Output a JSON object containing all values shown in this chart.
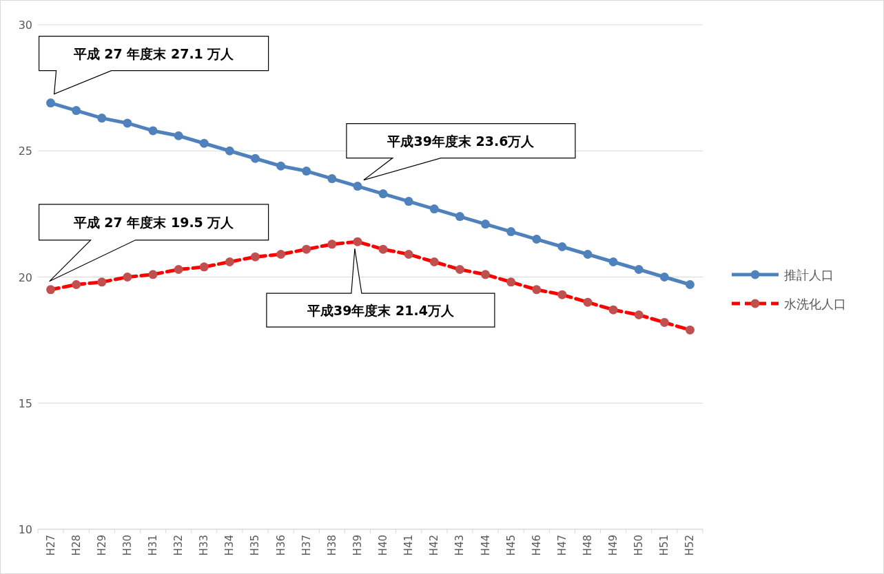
{
  "chart_data": {
    "type": "line",
    "categories": [
      "H27",
      "H28",
      "H29",
      "H30",
      "H31",
      "H32",
      "H33",
      "H34",
      "H35",
      "H36",
      "H37",
      "H38",
      "H39",
      "H40",
      "H41",
      "H42",
      "H43",
      "H44",
      "H45",
      "H46",
      "H47",
      "H48",
      "H49",
      "H50",
      "H51",
      "H52"
    ],
    "series": [
      {
        "name": "推計人口",
        "color": "#4f81bd",
        "line_style": "solid",
        "values": [
          26.9,
          26.6,
          26.3,
          26.1,
          25.8,
          25.6,
          25.3,
          25.0,
          24.7,
          24.4,
          24.2,
          23.9,
          23.6,
          23.3,
          23.0,
          22.7,
          22.4,
          22.1,
          21.8,
          21.5,
          21.2,
          20.9,
          20.6,
          20.3,
          20.0,
          19.7
        ]
      },
      {
        "name": "水洗化人口",
        "color": "#ff0000",
        "colors": [
          "#c0504d",
          "#c0504d",
          "#c0504d",
          "#c0504d",
          "#c0504d",
          "#c0504d",
          "#c0504d",
          "#c0504d",
          "#c0504d",
          "#c0504d",
          "#c0504d",
          "#c0504d",
          "#c0504d",
          "#c0504d",
          "#c0504d",
          "#c0504d",
          "#c0504d",
          "#c0504d",
          "#c0504d",
          "#c0504d",
          "#c0504d",
          "#c0504d",
          "#c0504d",
          "#c0504d",
          "#c0504d",
          "#c0504d"
        ],
        "line_style": "dashed",
        "values": [
          19.5,
          19.7,
          19.8,
          20.0,
          20.1,
          20.3,
          20.4,
          20.6,
          20.8,
          20.9,
          21.1,
          21.3,
          21.4,
          21.1,
          20.9,
          20.6,
          20.3,
          20.1,
          19.8,
          19.5,
          19.3,
          19.0,
          18.7,
          18.5,
          18.2,
          17.9
        ]
      }
    ],
    "ylim": [
      10,
      30
    ],
    "yticks": [
      10,
      15,
      20,
      25,
      30
    ],
    "grid": "y",
    "marker": "circle",
    "legend": "right",
    "annotations": [
      "平成 27 年度末  27.1 万人",
      "平成39年度末  23.6万人",
      "平成 27 年度末  19.5 万人",
      "平成39年度末  21.4万人"
    ]
  }
}
